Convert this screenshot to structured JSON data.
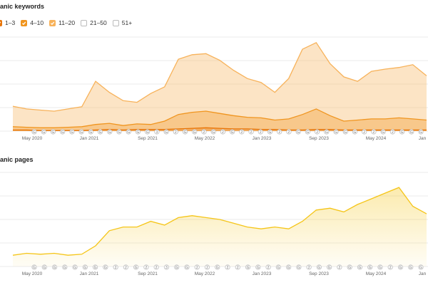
{
  "keywords_section": {
    "title": "anic keywords",
    "legend": [
      {
        "label": "1–3",
        "checked": true,
        "color": "#e8760a"
      },
      {
        "label": "4–10",
        "checked": true,
        "color": "#f0951f"
      },
      {
        "label": "11–20",
        "checked": true,
        "color": "#f7b25a"
      },
      {
        "label": "21–50",
        "checked": false,
        "color": "#bbbbbb"
      },
      {
        "label": "51+",
        "checked": false,
        "color": "#bbbbbb"
      }
    ]
  },
  "pages_section": {
    "title": "anic pages"
  },
  "x_axis_labels": [
    "May 2020",
    "Jan 2021",
    "Sep 2021",
    "May 2022",
    "Jan 2023",
    "Sep 2023",
    "May 2024",
    "Jan"
  ],
  "marker_rows": {
    "keywords": [
      "G",
      "G",
      "G",
      "G",
      "G",
      "G",
      "G",
      "G",
      "G",
      "G",
      "G",
      "G",
      "G",
      "3",
      "G",
      "2",
      "G",
      "G",
      "2",
      "G",
      "2",
      "G",
      "2",
      "2",
      "2",
      "G",
      "2",
      "2",
      "G",
      "G",
      "2",
      "G",
      "G",
      "G",
      "G",
      "2",
      "2",
      "G",
      "2",
      "G",
      "G",
      "G"
    ],
    "pages": [
      "G",
      "G",
      "G",
      "G",
      "G",
      "G",
      "G",
      "G",
      "2",
      "2",
      "G",
      "2",
      "2",
      "3",
      "G",
      "G",
      "2",
      "2",
      "G",
      "2",
      "2",
      "G",
      "G",
      "2",
      "G",
      "G",
      "G",
      "2",
      "G",
      "G",
      "2",
      "G",
      "G",
      "G",
      "G",
      "2",
      "G",
      "G",
      "G"
    ]
  },
  "chart_data": [
    {
      "type": "area",
      "name": "organic-keywords",
      "x": [
        "2020-01",
        "2020-03",
        "2020-05",
        "2020-07",
        "2020-09",
        "2020-11",
        "2021-01",
        "2021-03",
        "2021-05",
        "2021-07",
        "2021-09",
        "2021-11",
        "2022-01",
        "2022-03",
        "2022-05",
        "2022-07",
        "2022-09",
        "2022-11",
        "2023-01",
        "2023-03",
        "2023-05",
        "2023-07",
        "2023-09",
        "2023-11",
        "2024-01",
        "2024-03",
        "2024-05",
        "2024-07",
        "2024-09",
        "2024-11",
        "2025-01"
      ],
      "series": [
        {
          "name": "1–3",
          "color": "#e8760a",
          "values": [
            2,
            2,
            1,
            1,
            1,
            1,
            2,
            3,
            2,
            3,
            3,
            3,
            4,
            5,
            6,
            5,
            4,
            4,
            3,
            3,
            2,
            2,
            3,
            3,
            2,
            2,
            2,
            2,
            2,
            2,
            2
          ]
        },
        {
          "name": "4–10",
          "color": "#f0951f",
          "values": [
            8,
            7,
            6,
            6,
            7,
            8,
            12,
            14,
            10,
            13,
            12,
            18,
            30,
            34,
            36,
            32,
            28,
            25,
            24,
            20,
            22,
            30,
            40,
            28,
            18,
            20,
            22,
            22,
            24,
            22,
            20
          ]
        },
        {
          "name": "11–20",
          "color": "#f7b25a",
          "values": [
            45,
            40,
            38,
            36,
            40,
            44,
            90,
            70,
            55,
            52,
            68,
            80,
            130,
            138,
            140,
            128,
            110,
            95,
            88,
            70,
            95,
            148,
            160,
            122,
            98,
            90,
            108,
            112,
            115,
            120,
            100
          ]
        }
      ]
    },
    {
      "type": "area",
      "name": "organic-pages",
      "x": [
        "2020-01",
        "2020-03",
        "2020-05",
        "2020-07",
        "2020-09",
        "2020-11",
        "2021-01",
        "2021-03",
        "2021-05",
        "2021-07",
        "2021-09",
        "2021-11",
        "2022-01",
        "2022-03",
        "2022-05",
        "2022-07",
        "2022-09",
        "2022-11",
        "2023-01",
        "2023-03",
        "2023-05",
        "2023-07",
        "2023-09",
        "2023-11",
        "2024-01",
        "2024-03",
        "2024-05",
        "2024-07",
        "2024-09",
        "2024-11",
        "2025-01"
      ],
      "series": [
        {
          "name": "pages",
          "color": "#f5c518",
          "values": [
            12,
            14,
            13,
            14,
            12,
            13,
            22,
            38,
            42,
            42,
            48,
            44,
            52,
            54,
            52,
            50,
            46,
            42,
            40,
            42,
            40,
            48,
            60,
            62,
            58,
            66,
            72,
            78,
            84,
            64,
            56
          ]
        }
      ]
    }
  ]
}
